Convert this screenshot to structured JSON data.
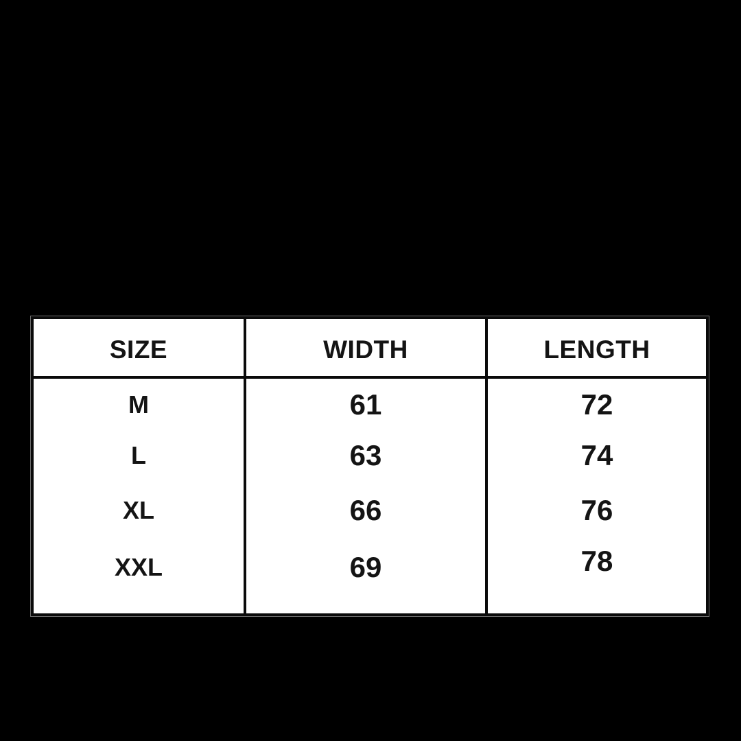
{
  "page": {
    "background_color": "#000000"
  },
  "table": {
    "fill_color": "#ffffff",
    "border_color": "#0a0a0a",
    "text_color": "#141414",
    "columns": [
      {
        "key": "size",
        "label": "SIZE"
      },
      {
        "key": "width",
        "label": "WIDTH"
      },
      {
        "key": "length",
        "label": "LENGTH"
      }
    ],
    "rows": [
      {
        "size": "M",
        "width": "61",
        "length": "72"
      },
      {
        "size": "L",
        "width": "63",
        "length": "74"
      },
      {
        "size": "XL",
        "width": "66",
        "length": "76"
      },
      {
        "size": "XXL",
        "width": "69",
        "length": "78"
      }
    ]
  },
  "chart_data": {
    "type": "table",
    "title": "",
    "columns": [
      "SIZE",
      "WIDTH",
      "LENGTH"
    ],
    "rows": [
      [
        "M",
        61,
        72
      ],
      [
        "L",
        63,
        74
      ],
      [
        "XL",
        66,
        76
      ],
      [
        "XXL",
        69,
        78
      ]
    ]
  }
}
